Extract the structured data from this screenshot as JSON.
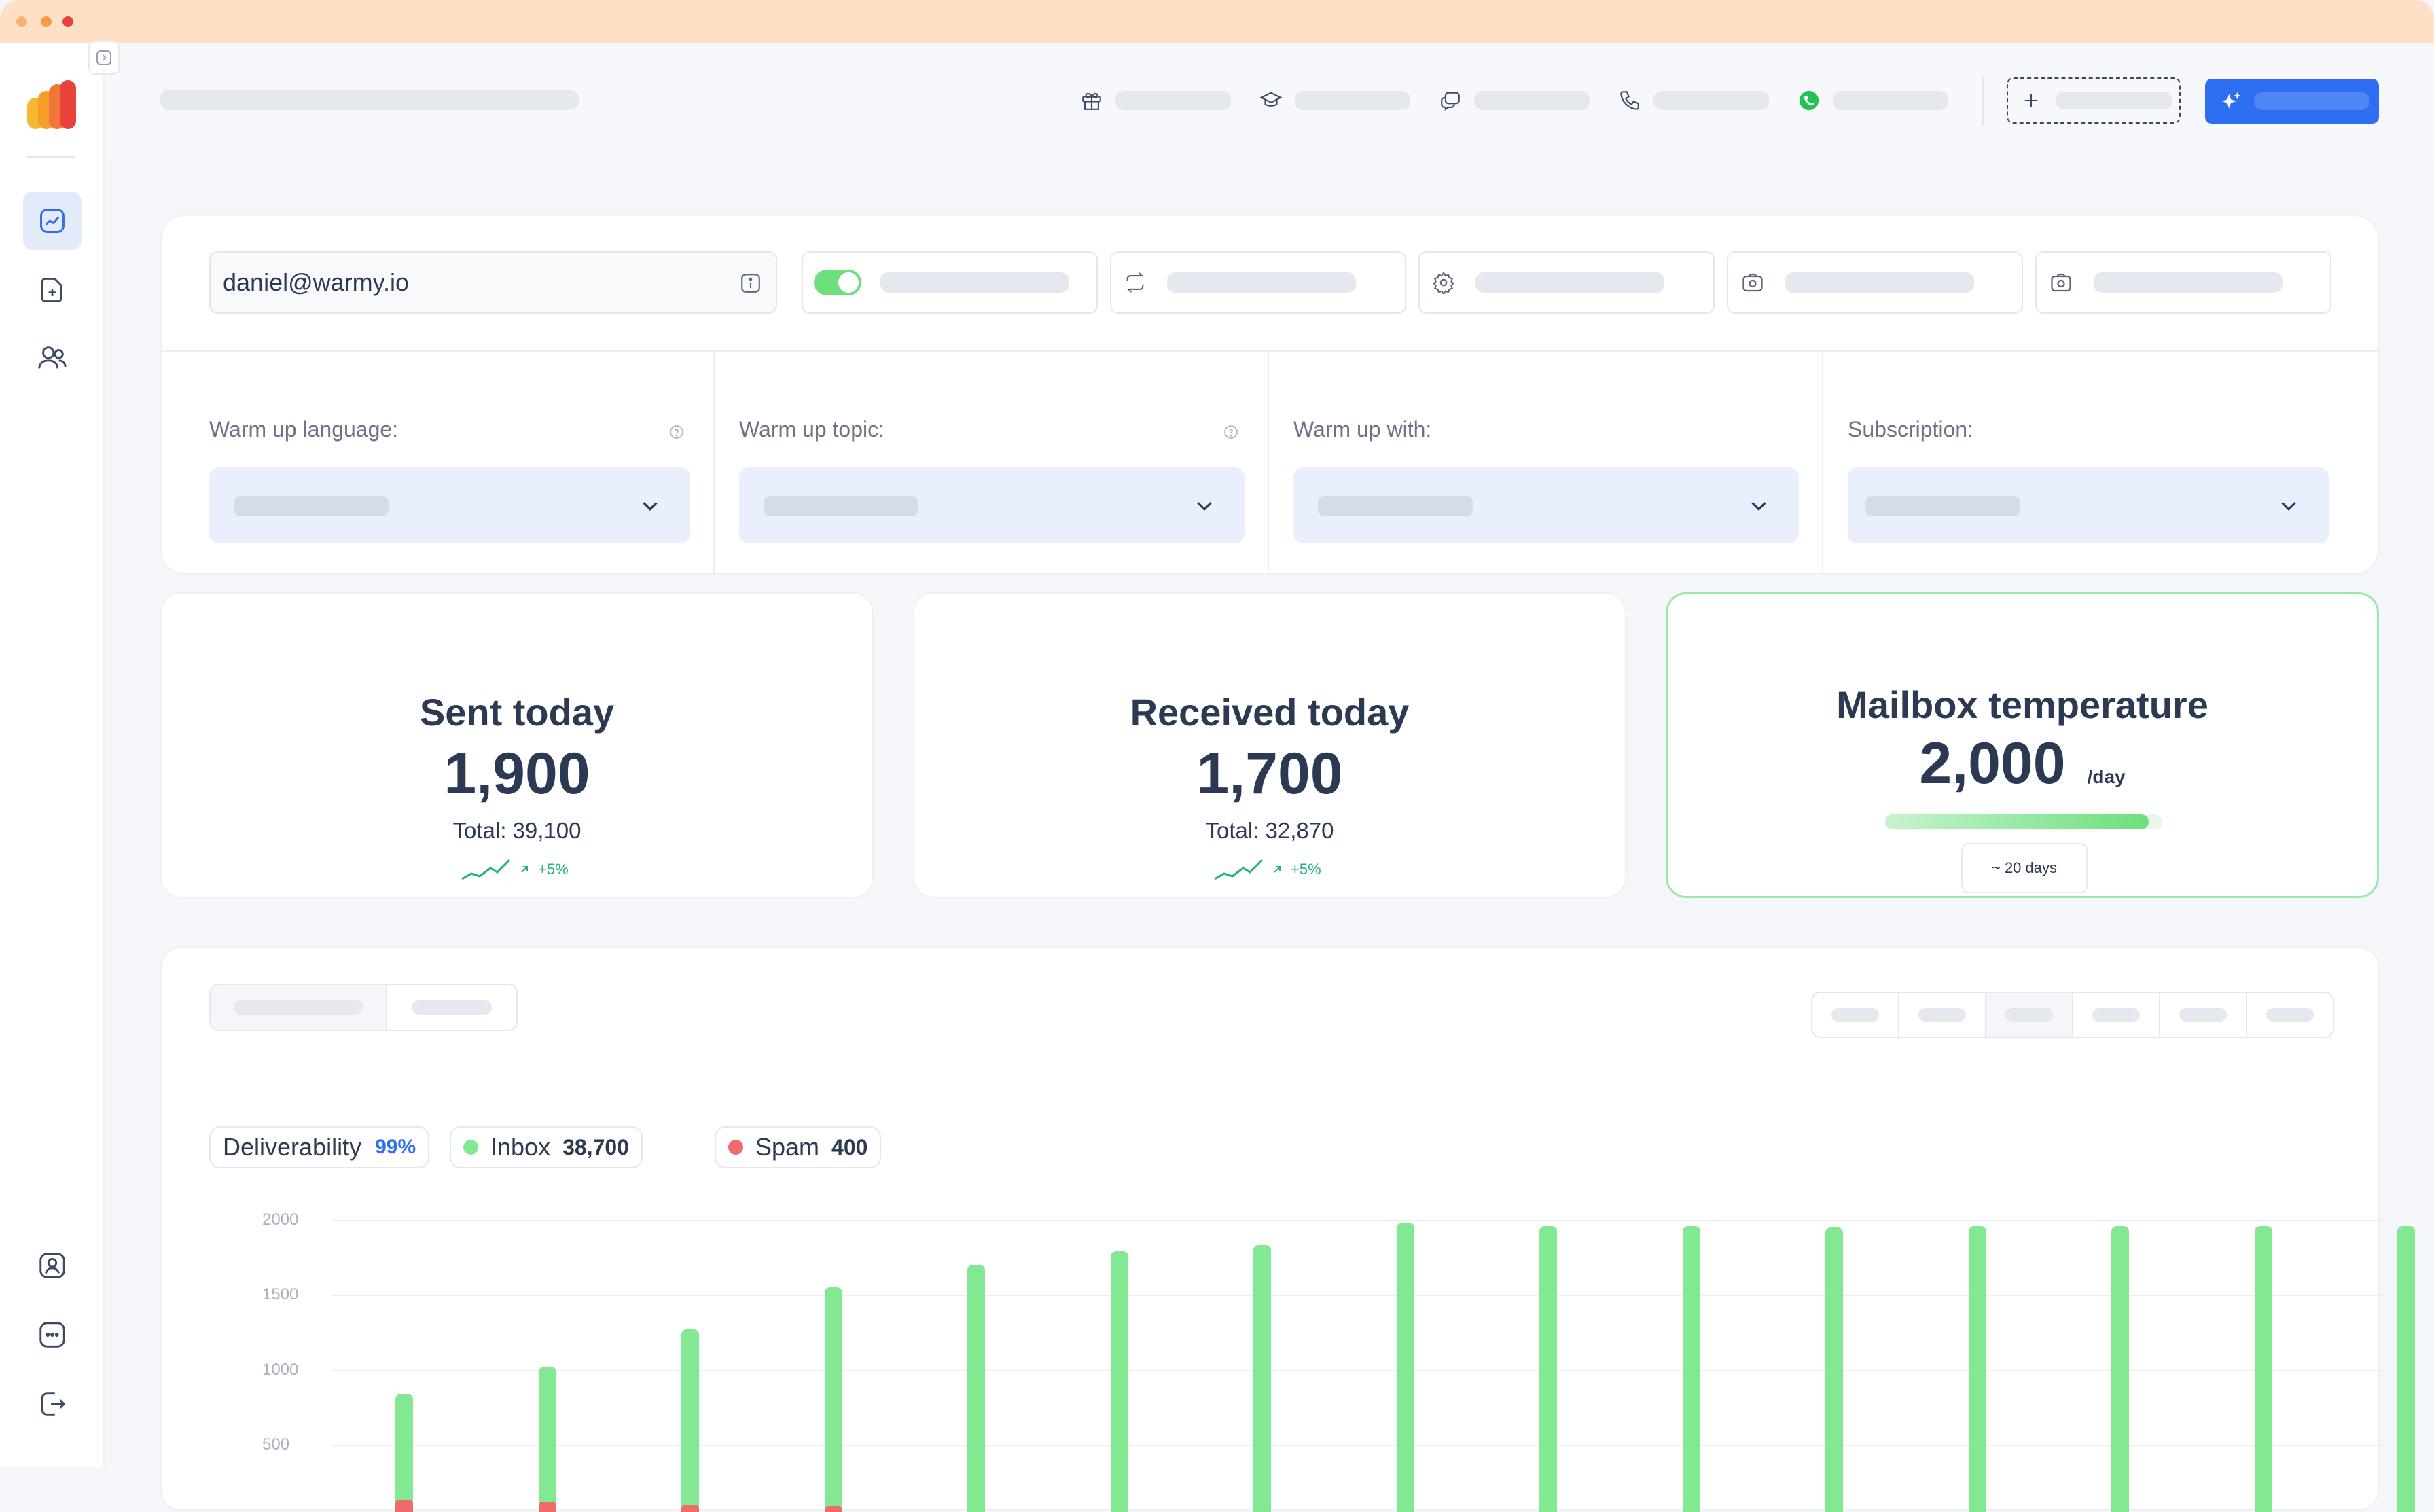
{
  "window": {
    "dots": [
      "#f5b46b",
      "#f59e4a",
      "#e8423a"
    ]
  },
  "header": {
    "nav_icons": [
      "gift-icon",
      "graduation-cap-icon",
      "chat-bubbles-icon",
      "phone-icon",
      "whatsapp-icon"
    ],
    "colors": {
      "primary": "#2e6ef0",
      "whatsapp": "#25c155"
    }
  },
  "sidebar": {
    "items": [
      "dashboard-icon",
      "add-mailbox-icon",
      "users-icon"
    ],
    "bottom": [
      "profile-icon",
      "support-chat-icon",
      "logout-icon"
    ]
  },
  "settings": {
    "email": "daniel@warmy.io",
    "toggle_on": true,
    "dropdowns": [
      {
        "label": "Warm up language:",
        "help": true
      },
      {
        "label": "Warm up topic:",
        "help": true
      },
      {
        "label": "Warm up with:",
        "help": false
      },
      {
        "label": "Subscription:",
        "help": false
      }
    ]
  },
  "stats": {
    "sent": {
      "title": "Sent today",
      "value": "1,900",
      "total": "Total: 39,100",
      "trend": "+5%"
    },
    "received": {
      "title": "Received today",
      "value": "1,700",
      "total": "Total: 32,870",
      "trend": "+5%"
    },
    "temperature": {
      "title": "Mailbox temperature",
      "value": "2,000",
      "unit": "/day",
      "eta": "~ 20 days",
      "progress": 0.95
    }
  },
  "legend": {
    "deliverability_label": "Deliverability",
    "deliverability_value": "99%",
    "inbox_label": "Inbox",
    "inbox_value": "38,700",
    "spam_label": "Spam",
    "spam_value": "400"
  },
  "chart_data": {
    "type": "bar",
    "stacked": true,
    "ylim": [
      0,
      2000
    ],
    "yticks": [
      "2000",
      "1500",
      "1000",
      "500"
    ],
    "series": [
      {
        "name": "Inbox",
        "color": "#82e892",
        "values": [
          760,
          950,
          1220,
          1510,
          1700,
          1790,
          1830,
          1980,
          1960,
          1960,
          1950,
          1960,
          1960,
          1960,
          1960
        ]
      },
      {
        "name": "Spam",
        "color": "#f06a6a",
        "values": [
          80,
          70,
          50,
          40,
          0,
          0,
          0,
          0,
          0,
          0,
          0,
          0,
          0,
          0,
          0
        ]
      }
    ]
  }
}
